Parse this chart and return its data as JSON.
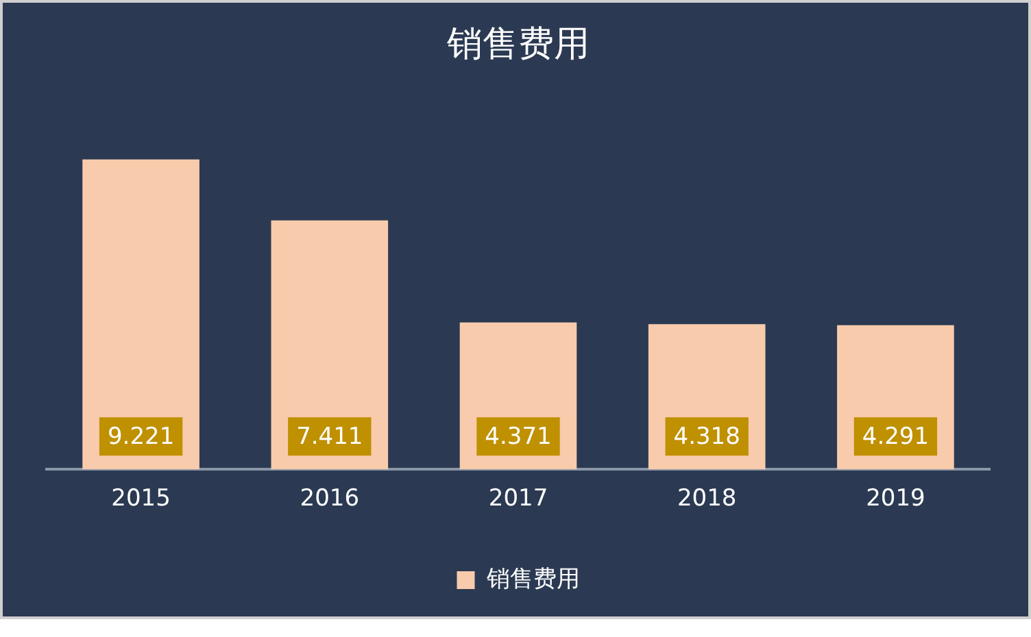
{
  "chart_data": {
    "type": "bar",
    "title": "销售费用",
    "categories": [
      "2015",
      "2016",
      "2017",
      "2018",
      "2019"
    ],
    "series": [
      {
        "name": "销售费用",
        "color": "#f8cbad",
        "values": [
          9.221,
          7.411,
          4.371,
          4.318,
          4.291
        ]
      }
    ],
    "data_labels": true,
    "legend": "bottom",
    "grid": false
  }
}
